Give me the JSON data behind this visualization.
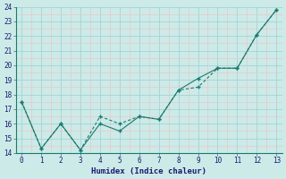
{
  "xlabel": "Humidex (Indice chaleur)",
  "x": [
    0,
    1,
    2,
    3,
    4,
    5,
    6,
    7,
    8,
    9,
    10,
    11,
    12,
    13
  ],
  "line1": [
    17.5,
    14.3,
    16.0,
    14.2,
    16.0,
    15.5,
    16.5,
    16.3,
    18.3,
    19.1,
    19.8,
    19.8,
    22.1,
    23.8
  ],
  "line2": [
    17.5,
    14.3,
    16.0,
    14.2,
    16.5,
    16.0,
    16.5,
    16.3,
    18.3,
    18.5,
    19.8,
    19.8,
    22.1,
    23.8
  ],
  "line_color": "#1a7a6e",
  "bg_color": "#cceae8",
  "grid_color_major": "#9ecfcc",
  "grid_color_minor": "#e8c8c8",
  "ylim": [
    14,
    24
  ],
  "xlim": [
    -0.3,
    13.3
  ],
  "yticks": [
    14,
    15,
    16,
    17,
    18,
    19,
    20,
    21,
    22,
    23,
    24
  ],
  "xticks": [
    0,
    1,
    2,
    3,
    4,
    5,
    6,
    7,
    8,
    9,
    10,
    11,
    12,
    13
  ]
}
